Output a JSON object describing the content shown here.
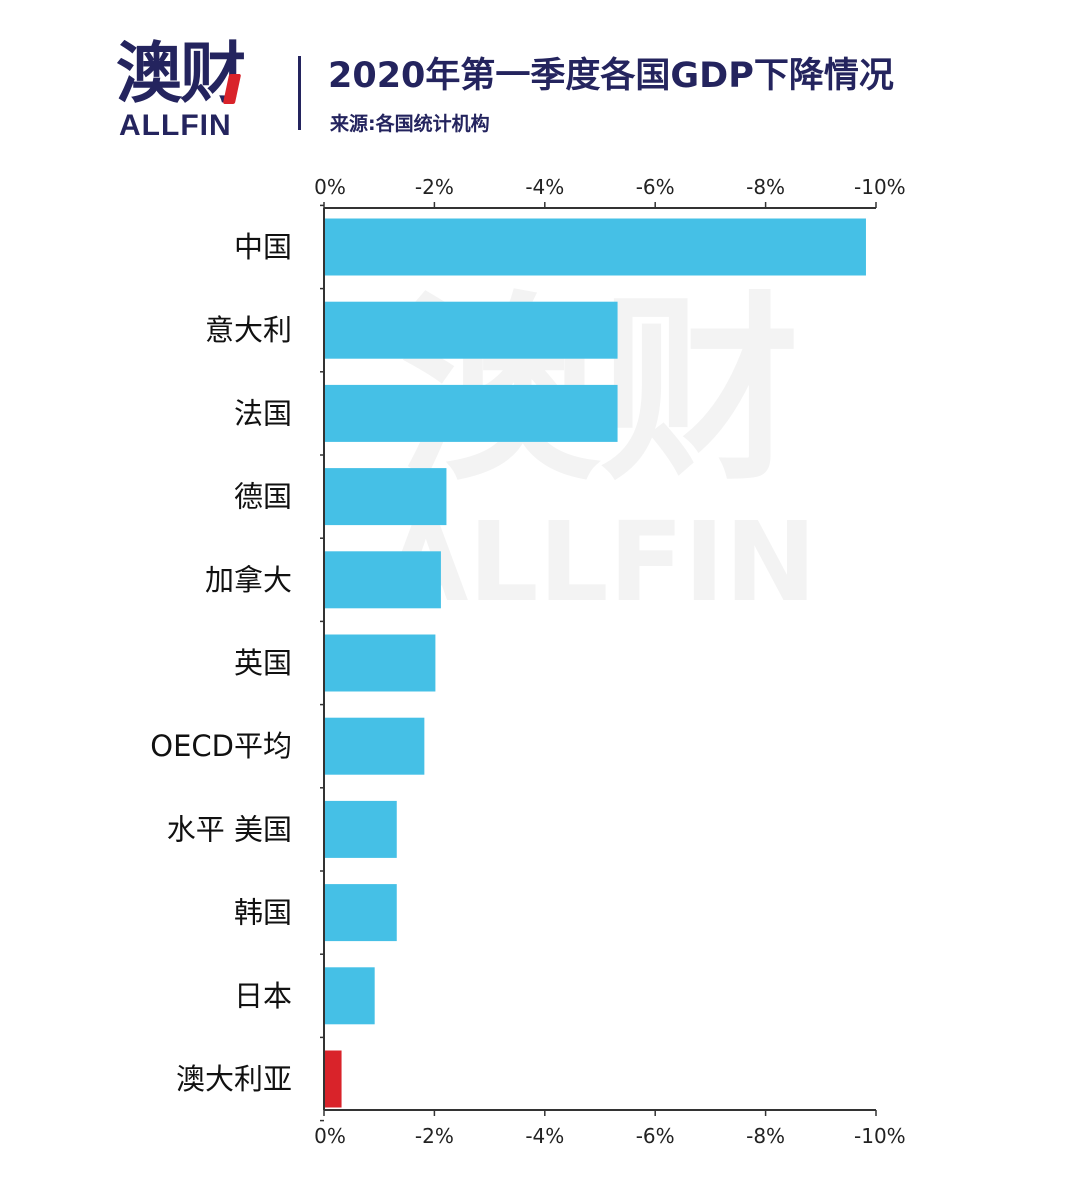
{
  "header": {
    "logo_cn": "澳财",
    "logo_en": "ALLFIN",
    "title": "2020年第一季度各国GDP下降情况",
    "subtitle": "来源:各国统计机构"
  },
  "watermark": {
    "cn": "澳财",
    "en": "ALLFIN"
  },
  "colors": {
    "bar": "#45c0e6",
    "highlight": "#d9232a",
    "brand": "#24245e",
    "axis": "#333333"
  },
  "chart_data": {
    "type": "bar",
    "orientation": "horizontal",
    "title": "2020年第一季度各国GDP下降情况",
    "categories": [
      "中国",
      "意大利",
      "法国",
      "德国",
      "加拿大",
      "英国",
      "OECD平均",
      "水平 美国",
      "韩国",
      "日本",
      "澳大利亚"
    ],
    "values": [
      -9.8,
      -5.3,
      -5.3,
      -2.2,
      -2.1,
      -2.0,
      -1.8,
      -1.3,
      -1.3,
      -0.9,
      -0.3
    ],
    "highlight_category": "澳大利亚",
    "xlim": [
      0,
      -10
    ],
    "ticks": [
      0,
      -2,
      -4,
      -6,
      -8,
      -10
    ],
    "tick_labels": [
      "0%",
      "-2%",
      "-4%",
      "-6%",
      "-8%",
      "-10%"
    ],
    "tick_positions": [
      "top",
      "bottom"
    ],
    "grid": false,
    "legend": "none"
  }
}
